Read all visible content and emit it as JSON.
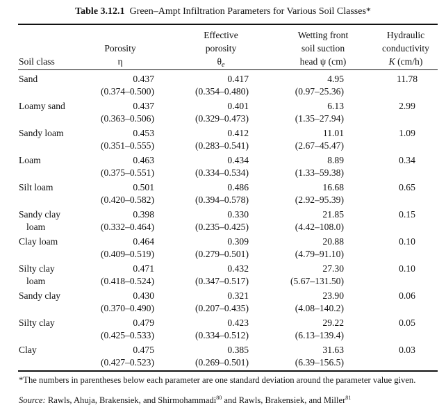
{
  "caption": {
    "number": "Table 3.12.1",
    "title": "Green–Ampt Infiltration Parameters for Various Soil Classes*"
  },
  "headers": {
    "soil_class": "Soil class",
    "porosity": {
      "line1": "Porosity",
      "symbol": "η"
    },
    "effective_porosity": {
      "line1": "Effective",
      "line2": "porosity",
      "symbol": "θ",
      "subscript": "e"
    },
    "wetting_front": {
      "line1": "Wetting front",
      "line2": "soil suction",
      "line3_prefix": "head ψ (cm)"
    },
    "hydraulic": {
      "line1": "Hydraulic",
      "line2": "conductivity",
      "symbol": "K",
      "unit": "(cm/h)"
    }
  },
  "rows": [
    {
      "soil": [
        "Sand",
        ""
      ],
      "porosity": [
        "0.437",
        "(0.374–0.500)"
      ],
      "effective": [
        "0.417",
        "(0.354–0.480)"
      ],
      "suction": [
        "4.95",
        "(0.97–25.36)"
      ],
      "k": "11.78"
    },
    {
      "soil": [
        "Loamy sand",
        ""
      ],
      "porosity": [
        "0.437",
        "(0.363–0.506)"
      ],
      "effective": [
        "0.401",
        "(0.329–0.473)"
      ],
      "suction": [
        "6.13",
        "(1.35–27.94)"
      ],
      "k": "2.99"
    },
    {
      "soil": [
        "Sandy loam",
        ""
      ],
      "porosity": [
        "0.453",
        "(0.351–0.555)"
      ],
      "effective": [
        "0.412",
        "(0.283–0.541)"
      ],
      "suction": [
        "11.01",
        "(2.67–45.47)"
      ],
      "k": "1.09"
    },
    {
      "soil": [
        "Loam",
        ""
      ],
      "porosity": [
        "0.463",
        "(0.375–0.551)"
      ],
      "effective": [
        "0.434",
        "(0.334–0.534)"
      ],
      "suction": [
        "8.89",
        "(1.33–59.38)"
      ],
      "k": "0.34"
    },
    {
      "soil": [
        "Silt loam",
        ""
      ],
      "porosity": [
        "0.501",
        "(0.420–0.582)"
      ],
      "effective": [
        "0.486",
        "(0.394–0.578)"
      ],
      "suction": [
        "16.68",
        "(2.92–95.39)"
      ],
      "k": "0.65"
    },
    {
      "soil": [
        "Sandy clay",
        "loam"
      ],
      "porosity": [
        "0.398",
        "(0.332–0.464)"
      ],
      "effective": [
        "0.330",
        "(0.235–0.425)"
      ],
      "suction": [
        "21.85",
        "(4.42–108.0)"
      ],
      "k": "0.15"
    },
    {
      "soil": [
        "Clay loam",
        ""
      ],
      "porosity": [
        "0.464",
        "(0.409–0.519)"
      ],
      "effective": [
        "0.309",
        "(0.279–0.501)"
      ],
      "suction": [
        "20.88",
        "(4.79–91.10)"
      ],
      "k": "0.10"
    },
    {
      "soil": [
        "Silty clay",
        "loam"
      ],
      "porosity": [
        "0.471",
        "(0.418–0.524)"
      ],
      "effective": [
        "0.432",
        "(0.347–0.517)"
      ],
      "suction": [
        "27.30",
        "(5.67–131.50)"
      ],
      "k": "0.10"
    },
    {
      "soil": [
        "Sandy clay",
        ""
      ],
      "porosity": [
        "0.430",
        "(0.370–0.490)"
      ],
      "effective": [
        "0.321",
        "(0.207–0.435)"
      ],
      "suction": [
        "23.90",
        "(4.08–140.2)"
      ],
      "k": "0.06"
    },
    {
      "soil": [
        "Silty clay",
        ""
      ],
      "porosity": [
        "0.479",
        "(0.425–0.533)"
      ],
      "effective": [
        "0.423",
        "(0.334–0.512)"
      ],
      "suction": [
        "29.22",
        "(6.13–139.4)"
      ],
      "k": "0.05"
    },
    {
      "soil": [
        "Clay",
        ""
      ],
      "porosity": [
        "0.475",
        "(0.427–0.523)"
      ],
      "effective": [
        "0.385",
        "(0.269–0.501)"
      ],
      "suction": [
        "31.63",
        "(6.39–156.5)"
      ],
      "k": "0.03"
    }
  ],
  "footnotes": {
    "note": "*The numbers in parentheses below each parameter are one standard deviation around the parameter value given.",
    "source_label": "Source:",
    "source_text_a": "Rawls, Ahuja, Brakensiek, and Shirmohammadi",
    "source_ref_a": "80",
    "source_text_b": "and Rawls, Brakensiek, and Miller",
    "source_ref_b": "81"
  }
}
